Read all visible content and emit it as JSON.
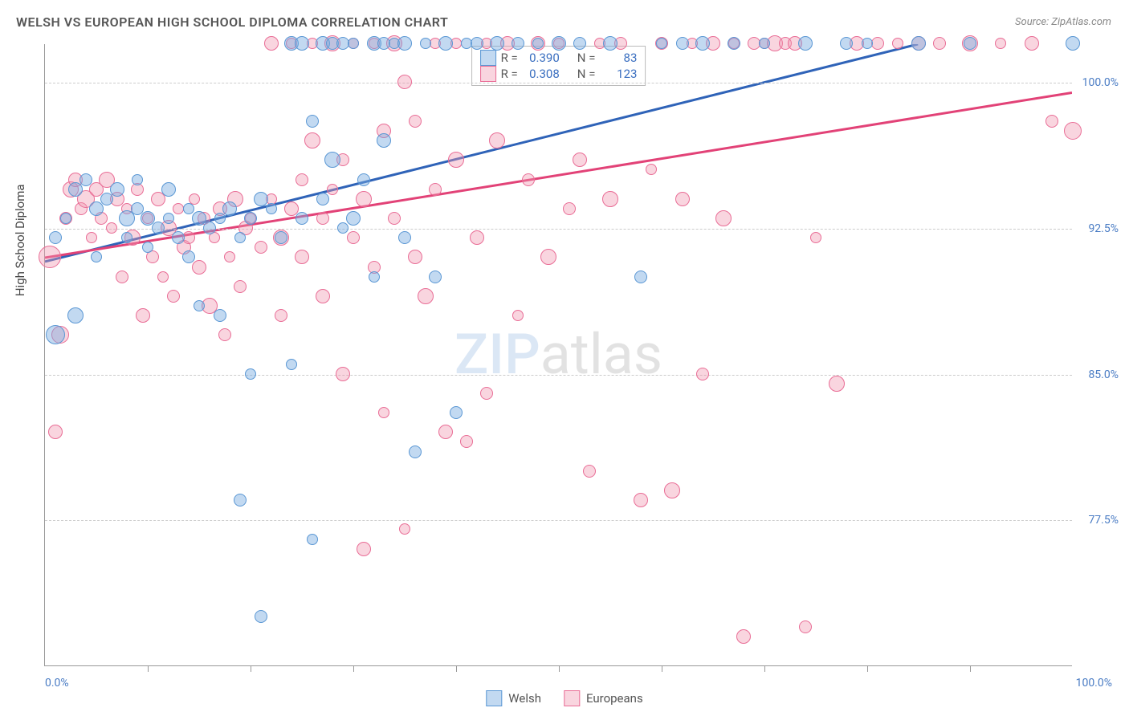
{
  "title": "WELSH VS EUROPEAN HIGH SCHOOL DIPLOMA CORRELATION CHART",
  "source": "Source: ZipAtlas.com",
  "watermark": {
    "part1": "ZIP",
    "part2": "atlas"
  },
  "y_axis_label": "High School Diploma",
  "chart": {
    "type": "scatter",
    "xlim": [
      0,
      100
    ],
    "ylim": [
      70,
      102
    ],
    "x_axis_labels": {
      "min": "0.0%",
      "max": "100.0%"
    },
    "y_ticks": [
      {
        "v": 77.5,
        "label": "77.5%"
      },
      {
        "v": 85.0,
        "label": "85.0%"
      },
      {
        "v": 92.5,
        "label": "92.5%"
      },
      {
        "v": 100.0,
        "label": "100.0%"
      }
    ],
    "x_tick_positions": [
      10,
      20,
      30,
      40,
      50,
      60,
      70,
      80,
      90
    ],
    "background_color": "#ffffff",
    "grid_color": "#cccccc",
    "series": [
      {
        "name": "Welsh",
        "color_fill": "rgba(120,170,225,0.45)",
        "color_stroke": "#5a97d4",
        "trend_color": "#2f63b8",
        "trend_width": 3,
        "stats": {
          "R": "0.390",
          "N": "83"
        },
        "trend": {
          "x1": 0,
          "y1": 90.8,
          "x2": 85,
          "y2": 102
        },
        "points": [
          {
            "x": 1,
            "y": 92,
            "r": 8
          },
          {
            "x": 1,
            "y": 87,
            "r": 12
          },
          {
            "x": 2,
            "y": 93,
            "r": 7
          },
          {
            "x": 3,
            "y": 94.5,
            "r": 9
          },
          {
            "x": 3,
            "y": 88,
            "r": 10
          },
          {
            "x": 4,
            "y": 95,
            "r": 8
          },
          {
            "x": 5,
            "y": 93.5,
            "r": 9
          },
          {
            "x": 5,
            "y": 91,
            "r": 7
          },
          {
            "x": 6,
            "y": 94,
            "r": 8
          },
          {
            "x": 7,
            "y": 94.5,
            "r": 9
          },
          {
            "x": 8,
            "y": 93,
            "r": 10
          },
          {
            "x": 8,
            "y": 92,
            "r": 7
          },
          {
            "x": 9,
            "y": 93.5,
            "r": 8
          },
          {
            "x": 9,
            "y": 95,
            "r": 7
          },
          {
            "x": 10,
            "y": 93,
            "r": 9
          },
          {
            "x": 10,
            "y": 91.5,
            "r": 7
          },
          {
            "x": 11,
            "y": 92.5,
            "r": 8
          },
          {
            "x": 12,
            "y": 93,
            "r": 7
          },
          {
            "x": 12,
            "y": 94.5,
            "r": 9
          },
          {
            "x": 13,
            "y": 92,
            "r": 8
          },
          {
            "x": 14,
            "y": 93.5,
            "r": 7
          },
          {
            "x": 14,
            "y": 91,
            "r": 8
          },
          {
            "x": 15,
            "y": 93,
            "r": 9
          },
          {
            "x": 15,
            "y": 88.5,
            "r": 7
          },
          {
            "x": 16,
            "y": 92.5,
            "r": 8
          },
          {
            "x": 17,
            "y": 93,
            "r": 7
          },
          {
            "x": 17,
            "y": 88,
            "r": 8
          },
          {
            "x": 18,
            "y": 93.5,
            "r": 9
          },
          {
            "x": 19,
            "y": 92,
            "r": 7
          },
          {
            "x": 19,
            "y": 78.5,
            "r": 8
          },
          {
            "x": 20,
            "y": 93,
            "r": 8
          },
          {
            "x": 20,
            "y": 85,
            "r": 7
          },
          {
            "x": 21,
            "y": 94,
            "r": 9
          },
          {
            "x": 21,
            "y": 72.5,
            "r": 8
          },
          {
            "x": 22,
            "y": 93.5,
            "r": 7
          },
          {
            "x": 23,
            "y": 92,
            "r": 8
          },
          {
            "x": 24,
            "y": 102,
            "r": 9
          },
          {
            "x": 24,
            "y": 85.5,
            "r": 7
          },
          {
            "x": 25,
            "y": 93,
            "r": 8
          },
          {
            "x": 25,
            "y": 102,
            "r": 9
          },
          {
            "x": 26,
            "y": 98,
            "r": 8
          },
          {
            "x": 26,
            "y": 76.5,
            "r": 7
          },
          {
            "x": 27,
            "y": 102,
            "r": 9
          },
          {
            "x": 27,
            "y": 94,
            "r": 8
          },
          {
            "x": 28,
            "y": 102,
            "r": 8
          },
          {
            "x": 28,
            "y": 96,
            "r": 10
          },
          {
            "x": 29,
            "y": 92.5,
            "r": 7
          },
          {
            "x": 29,
            "y": 102,
            "r": 8
          },
          {
            "x": 30,
            "y": 93,
            "r": 9
          },
          {
            "x": 30,
            "y": 102,
            "r": 7
          },
          {
            "x": 31,
            "y": 95,
            "r": 8
          },
          {
            "x": 32,
            "y": 102,
            "r": 9
          },
          {
            "x": 32,
            "y": 90,
            "r": 7
          },
          {
            "x": 33,
            "y": 102,
            "r": 8
          },
          {
            "x": 33,
            "y": 97,
            "r": 9
          },
          {
            "x": 34,
            "y": 102,
            "r": 7
          },
          {
            "x": 35,
            "y": 92,
            "r": 8
          },
          {
            "x": 35,
            "y": 102,
            "r": 9
          },
          {
            "x": 36,
            "y": 81,
            "r": 8
          },
          {
            "x": 37,
            "y": 102,
            "r": 7
          },
          {
            "x": 38,
            "y": 90,
            "r": 8
          },
          {
            "x": 39,
            "y": 102,
            "r": 9
          },
          {
            "x": 40,
            "y": 83,
            "r": 8
          },
          {
            "x": 41,
            "y": 102,
            "r": 7
          },
          {
            "x": 42,
            "y": 102,
            "r": 8
          },
          {
            "x": 44,
            "y": 102,
            "r": 9
          },
          {
            "x": 46,
            "y": 102,
            "r": 8
          },
          {
            "x": 48,
            "y": 102,
            "r": 7
          },
          {
            "x": 50,
            "y": 102,
            "r": 9
          },
          {
            "x": 52,
            "y": 102,
            "r": 8
          },
          {
            "x": 55,
            "y": 102,
            "r": 9
          },
          {
            "x": 58,
            "y": 90,
            "r": 8
          },
          {
            "x": 60,
            "y": 102,
            "r": 7
          },
          {
            "x": 62,
            "y": 102,
            "r": 8
          },
          {
            "x": 64,
            "y": 102,
            "r": 9
          },
          {
            "x": 67,
            "y": 102,
            "r": 8
          },
          {
            "x": 70,
            "y": 102,
            "r": 7
          },
          {
            "x": 74,
            "y": 102,
            "r": 9
          },
          {
            "x": 78,
            "y": 102,
            "r": 8
          },
          {
            "x": 80,
            "y": 102,
            "r": 7
          },
          {
            "x": 85,
            "y": 102,
            "r": 9
          },
          {
            "x": 90,
            "y": 102,
            "r": 8
          },
          {
            "x": 100,
            "y": 102,
            "r": 9
          }
        ]
      },
      {
        "name": "Europeans",
        "color_fill": "rgba(240,150,175,0.40)",
        "color_stroke": "#e96d96",
        "trend_color": "#e24277",
        "trend_width": 3,
        "stats": {
          "R": "0.308",
          "N": "123"
        },
        "trend": {
          "x1": 0,
          "y1": 91.0,
          "x2": 100,
          "y2": 99.5
        },
        "points": [
          {
            "x": 0.5,
            "y": 91,
            "r": 14
          },
          {
            "x": 1,
            "y": 82,
            "r": 9
          },
          {
            "x": 1.5,
            "y": 87,
            "r": 11
          },
          {
            "x": 2,
            "y": 93,
            "r": 8
          },
          {
            "x": 2.5,
            "y": 94.5,
            "r": 10
          },
          {
            "x": 3,
            "y": 95,
            "r": 9
          },
          {
            "x": 3.5,
            "y": 93.5,
            "r": 8
          },
          {
            "x": 4,
            "y": 94,
            "r": 11
          },
          {
            "x": 4.5,
            "y": 92,
            "r": 7
          },
          {
            "x": 5,
            "y": 94.5,
            "r": 9
          },
          {
            "x": 5.5,
            "y": 93,
            "r": 8
          },
          {
            "x": 6,
            "y": 95,
            "r": 10
          },
          {
            "x": 6.5,
            "y": 92.5,
            "r": 7
          },
          {
            "x": 7,
            "y": 94,
            "r": 9
          },
          {
            "x": 7.5,
            "y": 90,
            "r": 8
          },
          {
            "x": 8,
            "y": 93.5,
            "r": 7
          },
          {
            "x": 8.5,
            "y": 92,
            "r": 10
          },
          {
            "x": 9,
            "y": 94.5,
            "r": 8
          },
          {
            "x": 9.5,
            "y": 88,
            "r": 9
          },
          {
            "x": 10,
            "y": 93,
            "r": 7
          },
          {
            "x": 10.5,
            "y": 91,
            "r": 8
          },
          {
            "x": 11,
            "y": 94,
            "r": 9
          },
          {
            "x": 11.5,
            "y": 90,
            "r": 7
          },
          {
            "x": 12,
            "y": 92.5,
            "r": 10
          },
          {
            "x": 12.5,
            "y": 89,
            "r": 8
          },
          {
            "x": 13,
            "y": 93.5,
            "r": 7
          },
          {
            "x": 13.5,
            "y": 91.5,
            "r": 9
          },
          {
            "x": 14,
            "y": 92,
            "r": 8
          },
          {
            "x": 14.5,
            "y": 94,
            "r": 7
          },
          {
            "x": 15,
            "y": 90.5,
            "r": 9
          },
          {
            "x": 15.5,
            "y": 93,
            "r": 8
          },
          {
            "x": 16,
            "y": 88.5,
            "r": 10
          },
          {
            "x": 16.5,
            "y": 92,
            "r": 7
          },
          {
            "x": 17,
            "y": 93.5,
            "r": 9
          },
          {
            "x": 17.5,
            "y": 87,
            "r": 8
          },
          {
            "x": 18,
            "y": 91,
            "r": 7
          },
          {
            "x": 18.5,
            "y": 94,
            "r": 10
          },
          {
            "x": 19,
            "y": 89.5,
            "r": 8
          },
          {
            "x": 19.5,
            "y": 92.5,
            "r": 9
          },
          {
            "x": 20,
            "y": 93,
            "r": 7
          },
          {
            "x": 21,
            "y": 91.5,
            "r": 8
          },
          {
            "x": 22,
            "y": 102,
            "r": 9
          },
          {
            "x": 22,
            "y": 94,
            "r": 7
          },
          {
            "x": 23,
            "y": 92,
            "r": 10
          },
          {
            "x": 23,
            "y": 88,
            "r": 8
          },
          {
            "x": 24,
            "y": 93.5,
            "r": 9
          },
          {
            "x": 24,
            "y": 102,
            "r": 7
          },
          {
            "x": 25,
            "y": 95,
            "r": 8
          },
          {
            "x": 25,
            "y": 91,
            "r": 9
          },
          {
            "x": 26,
            "y": 97,
            "r": 10
          },
          {
            "x": 26,
            "y": 102,
            "r": 7
          },
          {
            "x": 27,
            "y": 93,
            "r": 8
          },
          {
            "x": 27,
            "y": 89,
            "r": 9
          },
          {
            "x": 28,
            "y": 94.5,
            "r": 7
          },
          {
            "x": 28,
            "y": 102,
            "r": 10
          },
          {
            "x": 29,
            "y": 96,
            "r": 8
          },
          {
            "x": 29,
            "y": 85,
            "r": 9
          },
          {
            "x": 30,
            "y": 102,
            "r": 7
          },
          {
            "x": 30,
            "y": 92,
            "r": 8
          },
          {
            "x": 31,
            "y": 76,
            "r": 9
          },
          {
            "x": 31,
            "y": 94,
            "r": 10
          },
          {
            "x": 32,
            "y": 102,
            "r": 7
          },
          {
            "x": 32,
            "y": 90.5,
            "r": 8
          },
          {
            "x": 33,
            "y": 97.5,
            "r": 9
          },
          {
            "x": 33,
            "y": 83,
            "r": 7
          },
          {
            "x": 34,
            "y": 102,
            "r": 10
          },
          {
            "x": 34,
            "y": 93,
            "r": 8
          },
          {
            "x": 35,
            "y": 100,
            "r": 9
          },
          {
            "x": 35,
            "y": 77,
            "r": 7
          },
          {
            "x": 36,
            "y": 98,
            "r": 8
          },
          {
            "x": 36,
            "y": 91,
            "r": 9
          },
          {
            "x": 37,
            "y": 89,
            "r": 10
          },
          {
            "x": 38,
            "y": 102,
            "r": 7
          },
          {
            "x": 38,
            "y": 94.5,
            "r": 8
          },
          {
            "x": 39,
            "y": 82,
            "r": 9
          },
          {
            "x": 40,
            "y": 102,
            "r": 7
          },
          {
            "x": 40,
            "y": 96,
            "r": 10
          },
          {
            "x": 41,
            "y": 81.5,
            "r": 8
          },
          {
            "x": 42,
            "y": 92,
            "r": 9
          },
          {
            "x": 43,
            "y": 102,
            "r": 7
          },
          {
            "x": 43,
            "y": 84,
            "r": 8
          },
          {
            "x": 44,
            "y": 97,
            "r": 10
          },
          {
            "x": 45,
            "y": 102,
            "r": 9
          },
          {
            "x": 46,
            "y": 88,
            "r": 7
          },
          {
            "x": 47,
            "y": 95,
            "r": 8
          },
          {
            "x": 48,
            "y": 102,
            "r": 9
          },
          {
            "x": 49,
            "y": 91,
            "r": 10
          },
          {
            "x": 50,
            "y": 102,
            "r": 7
          },
          {
            "x": 51,
            "y": 93.5,
            "r": 8
          },
          {
            "x": 52,
            "y": 96,
            "r": 9
          },
          {
            "x": 53,
            "y": 80,
            "r": 8
          },
          {
            "x": 54,
            "y": 102,
            "r": 7
          },
          {
            "x": 55,
            "y": 94,
            "r": 10
          },
          {
            "x": 56,
            "y": 102,
            "r": 8
          },
          {
            "x": 58,
            "y": 78.5,
            "r": 9
          },
          {
            "x": 59,
            "y": 95.5,
            "r": 7
          },
          {
            "x": 60,
            "y": 102,
            "r": 8
          },
          {
            "x": 61,
            "y": 79,
            "r": 10
          },
          {
            "x": 62,
            "y": 94,
            "r": 9
          },
          {
            "x": 63,
            "y": 102,
            "r": 7
          },
          {
            "x": 64,
            "y": 85,
            "r": 8
          },
          {
            "x": 65,
            "y": 102,
            "r": 9
          },
          {
            "x": 66,
            "y": 93,
            "r": 10
          },
          {
            "x": 67,
            "y": 102,
            "r": 7
          },
          {
            "x": 68,
            "y": 71.5,
            "r": 9
          },
          {
            "x": 69,
            "y": 102,
            "r": 8
          },
          {
            "x": 70,
            "y": 102,
            "r": 7
          },
          {
            "x": 71,
            "y": 102,
            "r": 10
          },
          {
            "x": 72,
            "y": 102,
            "r": 8
          },
          {
            "x": 73,
            "y": 102,
            "r": 9
          },
          {
            "x": 74,
            "y": 72,
            "r": 8
          },
          {
            "x": 75,
            "y": 92,
            "r": 7
          },
          {
            "x": 77,
            "y": 84.5,
            "r": 10
          },
          {
            "x": 79,
            "y": 102,
            "r": 9
          },
          {
            "x": 81,
            "y": 102,
            "r": 8
          },
          {
            "x": 83,
            "y": 102,
            "r": 7
          },
          {
            "x": 85,
            "y": 102,
            "r": 9
          },
          {
            "x": 87,
            "y": 102,
            "r": 8
          },
          {
            "x": 90,
            "y": 102,
            "r": 10
          },
          {
            "x": 93,
            "y": 102,
            "r": 7
          },
          {
            "x": 96,
            "y": 102,
            "r": 9
          },
          {
            "x": 98,
            "y": 98,
            "r": 8
          },
          {
            "x": 100,
            "y": 97.5,
            "r": 11
          }
        ]
      }
    ]
  },
  "legend": {
    "r_label": "R =",
    "n_label": "N ="
  },
  "bottom_legend": [
    {
      "label": "Welsh",
      "fill": "rgba(120,170,225,0.45)",
      "stroke": "#5a97d4"
    },
    {
      "label": "Europeans",
      "fill": "rgba(240,150,175,0.40)",
      "stroke": "#e96d96"
    }
  ]
}
